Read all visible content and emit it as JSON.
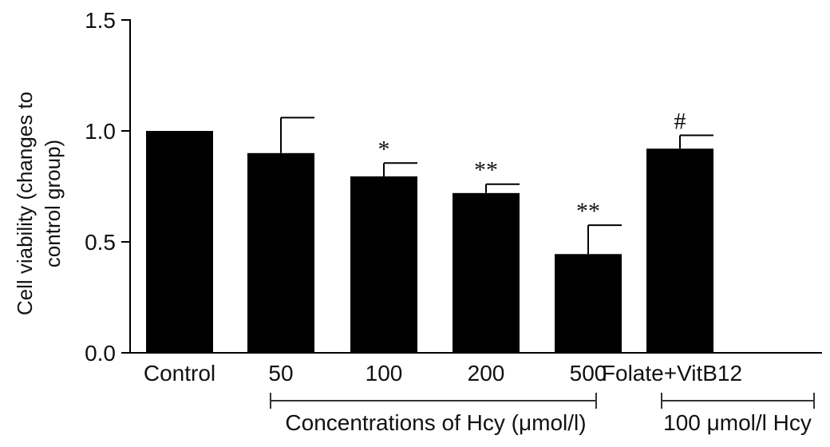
{
  "chart_data": {
    "type": "bar",
    "categories": [
      "Control",
      "50",
      "100",
      "200",
      "500",
      "Folate+VitB12"
    ],
    "values": [
      1.0,
      0.9,
      0.795,
      0.72,
      0.445,
      0.92
    ],
    "errors": [
      0.0,
      0.16,
      0.06,
      0.04,
      0.13,
      0.06
    ],
    "significance": [
      "",
      "",
      "*",
      "**",
      "**",
      "#"
    ],
    "ylabel_line1": "Cell viability (changes to",
    "ylabel_line2": "control group)",
    "ylim": [
      0,
      1.5
    ],
    "yticks": [
      "0.0",
      "0.5",
      "1.0",
      "1.5"
    ],
    "groups": [
      {
        "label": "Concentrations of Hcy (μmol/l)",
        "from": "50",
        "to": "500"
      },
      {
        "label": "100 μmol/l Hcy",
        "from": "Folate+VitB12",
        "to": "Folate+VitB12"
      }
    ],
    "bar_color": "#000000",
    "grid": false,
    "legend": "none"
  }
}
